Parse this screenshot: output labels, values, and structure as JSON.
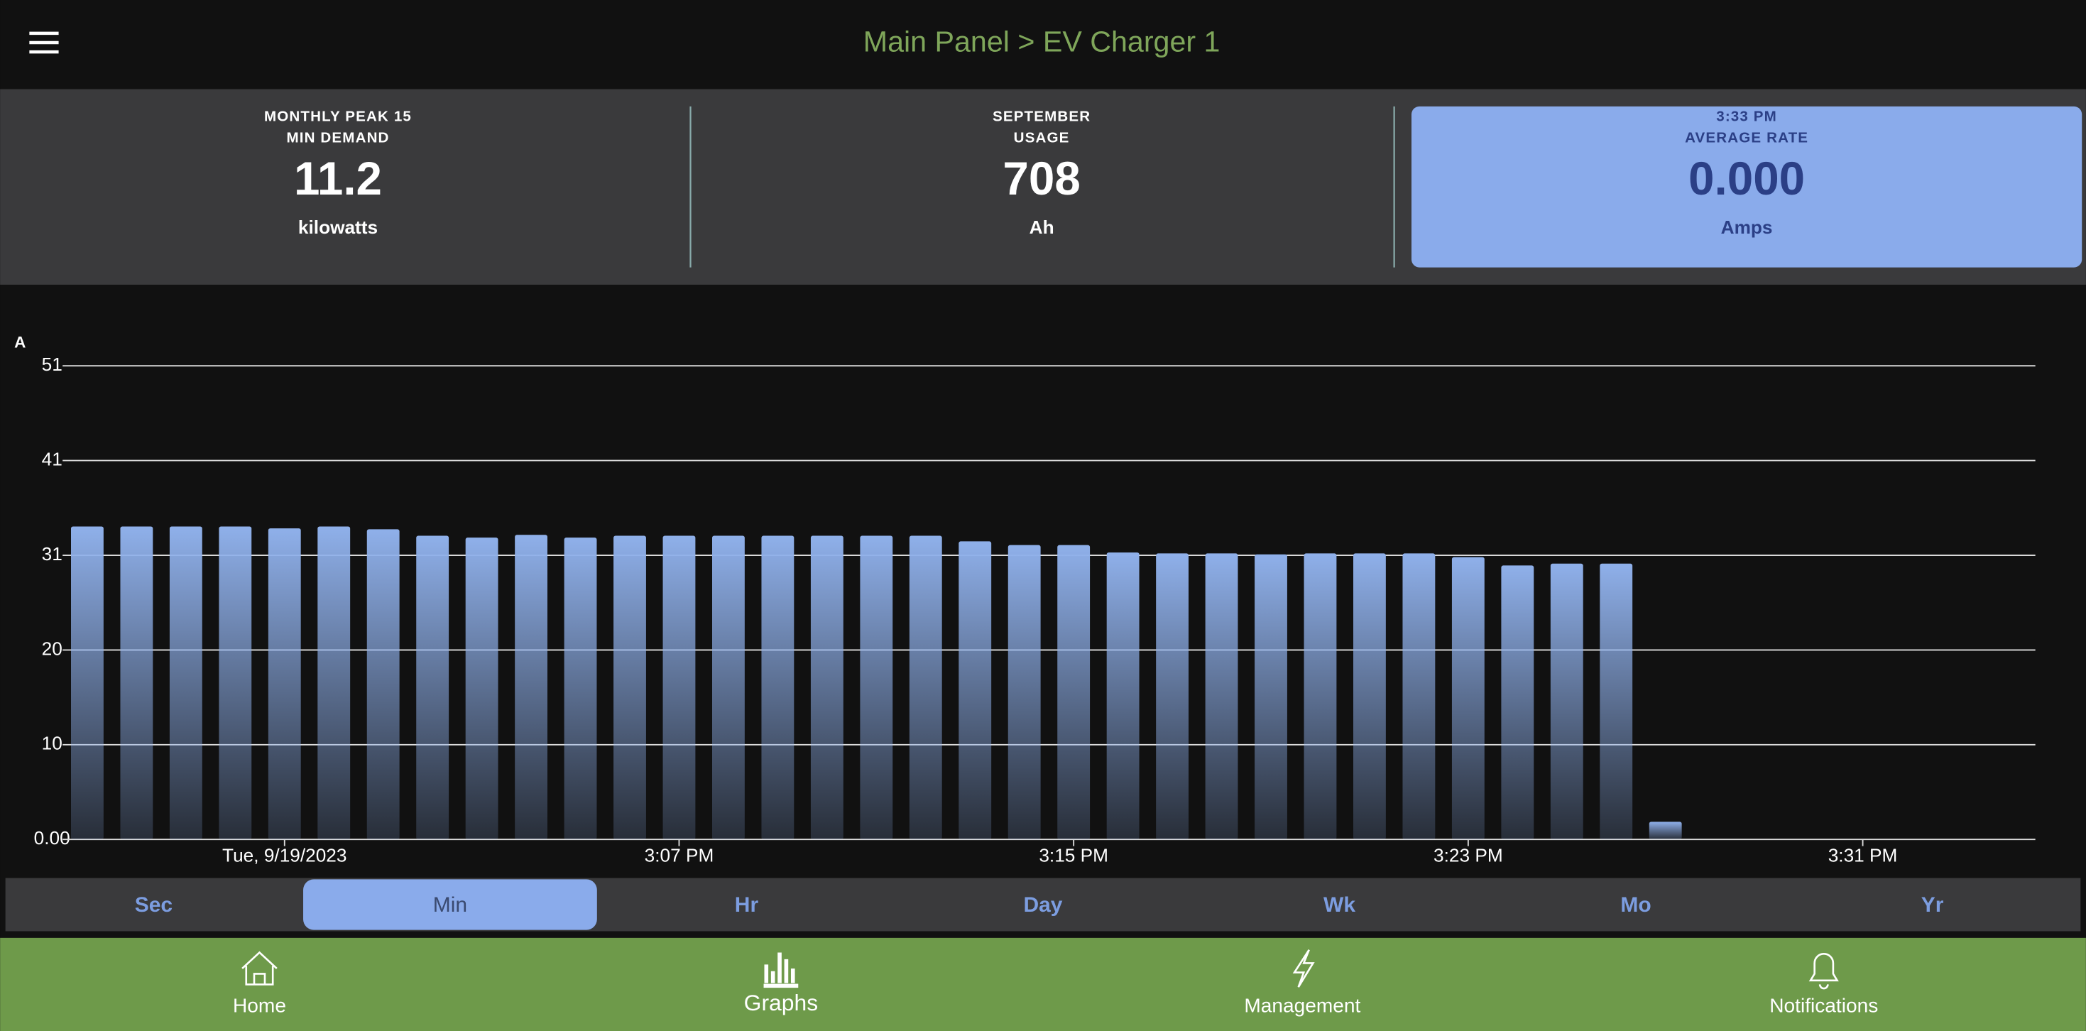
{
  "header": {
    "title": "Main Panel > EV Charger 1"
  },
  "cards": [
    {
      "label_lines": [
        "MONTHLY PEAK 15",
        "MIN DEMAND"
      ],
      "value": "11.2",
      "unit": "kilowatts"
    },
    {
      "label_lines": [
        "SEPTEMBER",
        "USAGE"
      ],
      "value": "708",
      "unit": "Ah"
    },
    {
      "label_lines": [
        "3:33 PM",
        "AVERAGE RATE"
      ],
      "value": "0.000",
      "unit": "Amps"
    }
  ],
  "chart_data": {
    "type": "bar",
    "y_axis_label": "A",
    "categories": [
      null,
      null,
      null,
      null,
      "Tue, 9/19/2023",
      null,
      null,
      null,
      null,
      null,
      null,
      null,
      "3:07 PM",
      null,
      null,
      null,
      null,
      null,
      null,
      null,
      "3:15 PM",
      null,
      null,
      null,
      null,
      null,
      null,
      null,
      "3:23 PM",
      null,
      null,
      null,
      null,
      null,
      null,
      null,
      "3:31 PM",
      null,
      null,
      null
    ],
    "values": [
      33.7,
      33.7,
      33.7,
      33.7,
      33.5,
      33.7,
      33.4,
      32.7,
      32.5,
      32.8,
      32.5,
      32.7,
      32.7,
      32.7,
      32.7,
      32.7,
      32.7,
      32.7,
      32.1,
      31.7,
      31.7,
      30.9,
      30.8,
      30.8,
      30.7,
      30.8,
      30.8,
      30.8,
      30.4,
      29.5,
      29.7,
      29.7,
      1.9,
      null,
      null,
      null,
      null,
      null,
      null,
      null
    ],
    "color": "#8fb0ea",
    "ylim": [
      0,
      51
    ],
    "yticks": [
      {
        "value": 0,
        "label": "0.00"
      },
      {
        "value": 10.2,
        "label": "10"
      },
      {
        "value": 20.4,
        "label": "20"
      },
      {
        "value": 30.6,
        "label": "31"
      },
      {
        "value": 40.8,
        "label": "41"
      },
      51
    ],
    "grid": true
  },
  "range_tabs": {
    "items": [
      "Sec",
      "Min",
      "Hr",
      "Day",
      "Wk",
      "Mo",
      "Yr"
    ],
    "active": "Min"
  },
  "nav": [
    "Home",
    "Graphs",
    "Management",
    "Notifications"
  ]
}
